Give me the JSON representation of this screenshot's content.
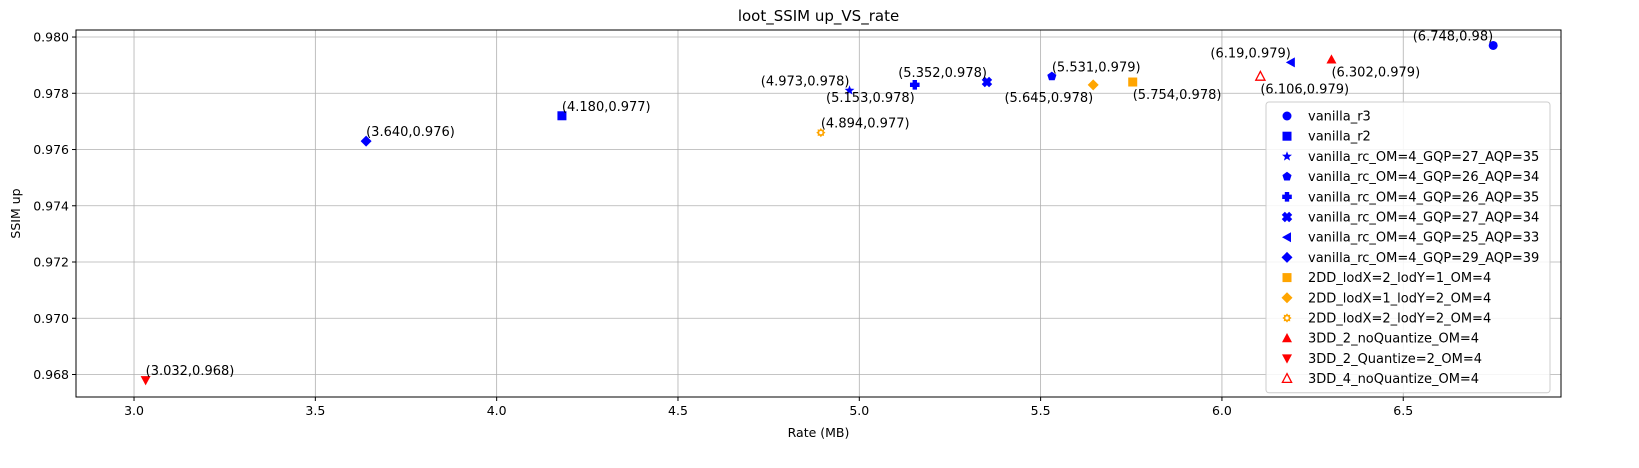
{
  "chart_data": {
    "type": "scatter",
    "title": "loot_SSIM up_VS_rate",
    "xlabel": "Rate (MB)",
    "ylabel": "SSIM up",
    "xlim": [
      2.84,
      6.935
    ],
    "ylim": [
      0.9672,
      0.98025
    ],
    "xticks": [
      3.0,
      3.5,
      4.0,
      4.5,
      5.0,
      5.5,
      6.0,
      6.5
    ],
    "xtick_labels": [
      "3.0",
      "3.5",
      "4.0",
      "4.5",
      "5.0",
      "5.5",
      "6.0",
      "6.5"
    ],
    "yticks": [
      0.968,
      0.97,
      0.972,
      0.974,
      0.976,
      0.978,
      0.98
    ],
    "ytick_labels": [
      "0.968",
      "0.970",
      "0.972",
      "0.974",
      "0.976",
      "0.978",
      "0.980"
    ],
    "grid": true,
    "legend_position": "right",
    "series": [
      {
        "name": "vanilla_r3",
        "marker": "circle",
        "color": "#0000ff",
        "x": 6.748,
        "y": 0.9797,
        "label": "(6.748,0.98)",
        "label_anchor": "end",
        "label_side": "above"
      },
      {
        "name": "vanilla_r2",
        "marker": "square",
        "color": "#0000ff",
        "x": 4.18,
        "y": 0.9772,
        "label": "(4.180,0.977)",
        "label_anchor": "start",
        "label_side": "above"
      },
      {
        "name": "vanilla_rc_OM=4_GQP=27_AQP=35",
        "marker": "star",
        "color": "#0000ff",
        "x": 4.973,
        "y": 0.9781,
        "label": "(4.973,0.978)",
        "label_anchor": "end",
        "label_side": "above"
      },
      {
        "name": "vanilla_rc_OM=4_GQP=26_AQP=34",
        "marker": "pentagon",
        "color": "#0000ff",
        "x": 5.531,
        "y": 0.9786,
        "label": "(5.531,0.979)",
        "label_anchor": "start",
        "label_side": "above"
      },
      {
        "name": "vanilla_rc_OM=4_GQP=26_AQP=35",
        "marker": "plus",
        "color": "#0000ff",
        "x": 5.153,
        "y": 0.9783,
        "label": "(5.153,0.978)",
        "label_anchor": "end",
        "label_side": "below"
      },
      {
        "name": "vanilla_rc_OM=4_GQP=27_AQP=34",
        "marker": "x",
        "color": "#0000ff",
        "x": 5.352,
        "y": 0.9784,
        "label": "(5.352,0.978)",
        "label_anchor": "end",
        "label_side": "above"
      },
      {
        "name": "vanilla_rc_OM=4_GQP=25_AQP=33",
        "marker": "triangle-left",
        "color": "#0000ff",
        "x": 6.19,
        "y": 0.9791,
        "label": "(6.19,0.979)",
        "label_anchor": "end",
        "label_side": "above"
      },
      {
        "name": "vanilla_rc_OM=4_GQP=29_AQP=39",
        "marker": "diamond",
        "color": "#0000ff",
        "x": 3.64,
        "y": 0.9763,
        "label": "(3.640,0.976)",
        "label_anchor": "start",
        "label_side": "above"
      },
      {
        "name": "2DD_lodX=2_lodY=1_OM=4",
        "marker": "square",
        "color": "#ffa500",
        "x": 5.754,
        "y": 0.9784,
        "label": "(5.754,0.978)",
        "label_anchor": "start",
        "label_side": "below"
      },
      {
        "name": "2DD_lodX=1_lodY=2_OM=4",
        "marker": "diamond",
        "color": "#ffa500",
        "x": 5.645,
        "y": 0.9783,
        "label": "(5.645,0.978)",
        "label_anchor": "end",
        "label_side": "below"
      },
      {
        "name": "2DD_lodX=2_lodY=2_OM=4",
        "marker": "gear",
        "color": "#ffa500",
        "x": 4.894,
        "y": 0.9766,
        "label": "(4.894,0.977)",
        "label_anchor": "start",
        "label_side": "above"
      },
      {
        "name": "3DD_2_noQuantize_OM=4",
        "marker": "triangle-up",
        "color": "#ff0000",
        "x": 6.302,
        "y": 0.9792,
        "label": "(6.302,0.979)",
        "label_anchor": "start",
        "label_side": "below"
      },
      {
        "name": "3DD_2_Quantize=2_OM=4",
        "marker": "triangle-down",
        "color": "#ff0000",
        "x": 3.032,
        "y": 0.9678,
        "label": "(3.032,0.968)",
        "label_anchor": "start",
        "label_side": "above"
      },
      {
        "name": "3DD_4_noQuantize_OM=4",
        "marker": "triangle-up-open",
        "color": "#ff0000",
        "x": 6.106,
        "y": 0.9786,
        "label": "(6.106,0.979)",
        "label_anchor": "start",
        "label_side": "below"
      }
    ]
  }
}
